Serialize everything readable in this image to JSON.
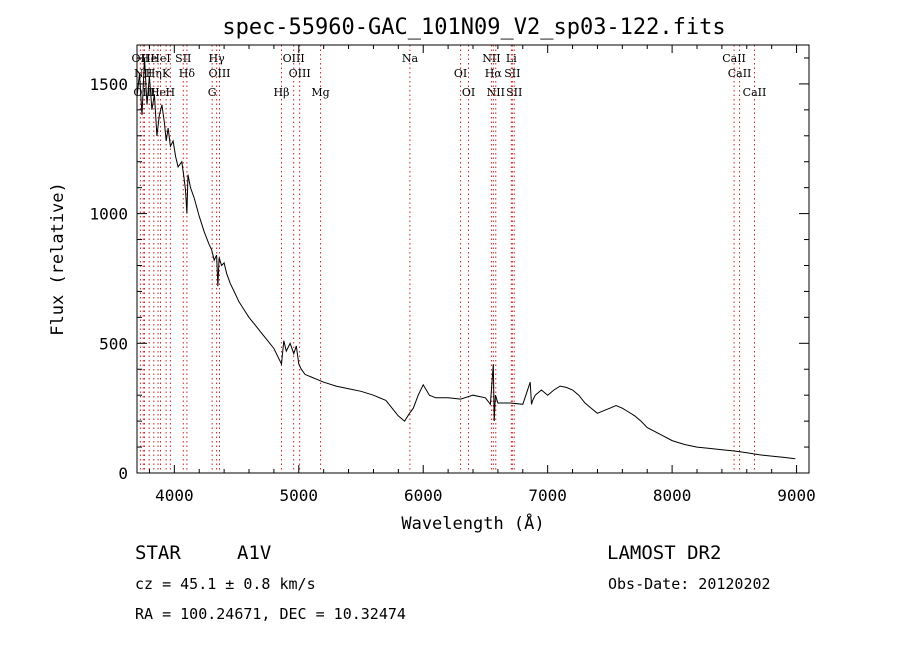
{
  "chart_data": {
    "type": "line",
    "title": "spec-55960-GAC_101N09_V2_sp03-122.fits",
    "xlabel": "Wavelength (Å)",
    "ylabel": "Flux (relative)",
    "xlim": [
      3700,
      9100
    ],
    "ylim": [
      0,
      1650
    ],
    "x_ticks": [
      4000,
      5000,
      6000,
      7000,
      8000,
      9000
    ],
    "y_ticks": [
      0,
      500,
      1000,
      1500
    ],
    "grid": false,
    "series": [
      {
        "x": [
          3700,
          3720,
          3740,
          3760,
          3780,
          3800,
          3820,
          3840,
          3860,
          3880,
          3900,
          3920,
          3935,
          3950,
          3968,
          3990,
          4010,
          4030,
          4060,
          4080,
          4090,
          4101,
          4110,
          4130,
          4160,
          4200,
          4240,
          4280,
          4300,
          4320,
          4340,
          4350,
          4360,
          4380,
          4400,
          4420,
          4450,
          4480,
          4520,
          4560,
          4600,
          4650,
          4700,
          4750,
          4800,
          4861,
          4880,
          4900,
          4930,
          4960,
          4980,
          5000,
          5020,
          5050,
          5100,
          5150,
          5200,
          5300,
          5400,
          5500,
          5600,
          5700,
          5750,
          5800,
          5850,
          5890,
          5920,
          5960,
          6000,
          6050,
          6100,
          6200,
          6300,
          6400,
          6500,
          6540,
          6563,
          6570,
          6580,
          6600,
          6700,
          6800,
          6860,
          6870,
          6880,
          6900,
          6950,
          7000,
          7050,
          7100,
          7150,
          7200,
          7250,
          7300,
          7350,
          7400,
          7450,
          7500,
          7550,
          7600,
          7650,
          7700,
          7750,
          7800,
          7900,
          8000,
          8100,
          8200,
          8300,
          8400,
          8500,
          8600,
          8700,
          8800,
          8900,
          8990
        ],
        "y": [
          1450,
          1540,
          1380,
          1600,
          1420,
          1530,
          1400,
          1460,
          1300,
          1380,
          1420,
          1350,
          1280,
          1330,
          1260,
          1280,
          1220,
          1180,
          1200,
          1130,
          1090,
          1000,
          1150,
          1100,
          1060,
          990,
          930,
          880,
          860,
          820,
          840,
          720,
          830,
          800,
          810,
          770,
          730,
          700,
          660,
          630,
          600,
          570,
          540,
          510,
          480,
          420,
          510,
          470,
          500,
          460,
          490,
          420,
          400,
          380,
          370,
          360,
          350,
          335,
          325,
          315,
          300,
          280,
          250,
          220,
          200,
          230,
          250,
          300,
          340,
          300,
          290,
          290,
          285,
          300,
          290,
          265,
          420,
          200,
          300,
          270,
          270,
          265,
          350,
          265,
          280,
          300,
          320,
          300,
          320,
          335,
          330,
          320,
          300,
          270,
          250,
          230,
          240,
          250,
          260,
          250,
          235,
          220,
          200,
          175,
          150,
          125,
          110,
          100,
          95,
          90,
          85,
          78,
          70,
          65,
          60,
          55
        ]
      }
    ],
    "line_ids": [
      {
        "wl": 3727,
        "label": "OII"
      },
      {
        "wl": 3750,
        "label": "NII"
      },
      {
        "wl": 3760,
        "label": "OIII"
      },
      {
        "wl": 3798,
        "label": "He"
      },
      {
        "wl": 3835,
        "label": "Hη"
      },
      {
        "wl": 3869,
        "label": "He"
      },
      {
        "wl": 3889,
        "label": "HeI"
      },
      {
        "wl": 3934,
        "label": "K"
      },
      {
        "wl": 3968,
        "label": "H"
      },
      {
        "wl": 4072,
        "label": "SII"
      },
      {
        "wl": 4101,
        "label": "Hδ"
      },
      {
        "wl": 4304,
        "label": "G"
      },
      {
        "wl": 4340,
        "label": "Hγ"
      },
      {
        "wl": 4363,
        "label": "OIII"
      },
      {
        "wl": 4861,
        "label": "Hβ"
      },
      {
        "wl": 4959,
        "label": "OIII"
      },
      {
        "wl": 5007,
        "label": "OIII"
      },
      {
        "wl": 5175,
        "label": "Mg"
      },
      {
        "wl": 5893,
        "label": "Na"
      },
      {
        "wl": 6300,
        "label": "OI"
      },
      {
        "wl": 6364,
        "label": "OI"
      },
      {
        "wl": 6548,
        "label": "NII"
      },
      {
        "wl": 6563,
        "label": "Hα"
      },
      {
        "wl": 6583,
        "label": "NII"
      },
      {
        "wl": 6708,
        "label": "Li"
      },
      {
        "wl": 6716,
        "label": "SII"
      },
      {
        "wl": 6731,
        "label": "SII"
      },
      {
        "wl": 8498,
        "label": "CaII"
      },
      {
        "wl": 8542,
        "label": "CaII"
      },
      {
        "wl": 8662,
        "label": "CaII"
      }
    ],
    "line_color": "#000000",
    "marker_color": "#d02020"
  },
  "info": {
    "class": "STAR",
    "subclass": "A1V",
    "survey": "LAMOST DR2",
    "cz": "cz = 45.1 ± 0.8 km/s",
    "obs_date": "Obs-Date: 20120202",
    "coords": "RA = 100.24671, DEC =  10.32474"
  }
}
